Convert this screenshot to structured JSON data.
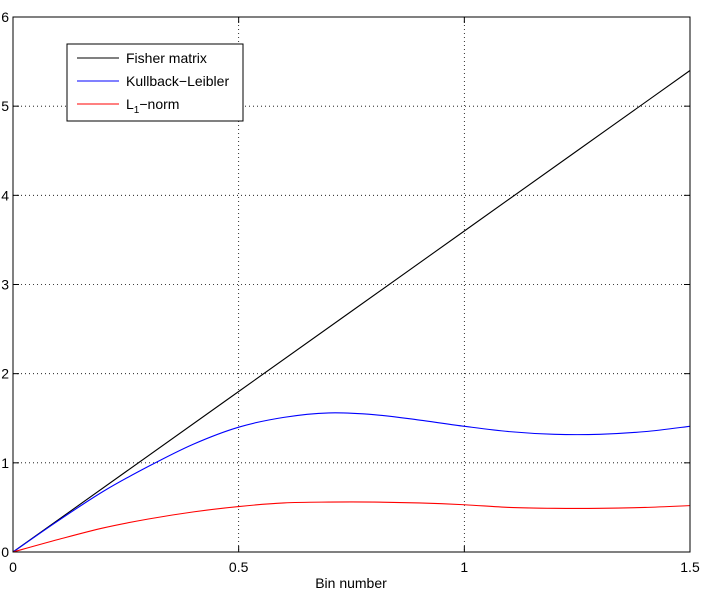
{
  "chart_data": {
    "type": "line",
    "xlabel": "Bin number",
    "ylabel": "",
    "xlim": [
      0,
      1.5
    ],
    "ylim": [
      0,
      6
    ],
    "xticks": [
      0,
      0.5,
      1,
      1.5
    ],
    "xtick_labels": [
      "0",
      "0.5",
      "1",
      "1.5"
    ],
    "yticks": [
      0,
      1,
      2,
      3,
      4,
      5,
      6
    ],
    "ytick_labels": [
      "0",
      "1",
      "2",
      "3",
      "4",
      "5",
      "6"
    ],
    "grid": true,
    "legend_position": "top-left",
    "series": [
      {
        "name": "Fisher matrix",
        "color": "#000000",
        "x": [
          0,
          0.25,
          0.5,
          0.75,
          1.0,
          1.25,
          1.5
        ],
        "y": [
          0,
          0.9,
          1.8,
          2.7,
          3.6,
          4.5,
          5.4
        ]
      },
      {
        "name": "Kullback−Leibler",
        "color": "#0000ff",
        "x": [
          0,
          0.1,
          0.2,
          0.3,
          0.4,
          0.5,
          0.6,
          0.7,
          0.8,
          0.9,
          1.0,
          1.1,
          1.2,
          1.3,
          1.4,
          1.5
        ],
        "y": [
          0,
          0.35,
          0.68,
          0.96,
          1.21,
          1.4,
          1.51,
          1.56,
          1.54,
          1.48,
          1.41,
          1.35,
          1.32,
          1.32,
          1.35,
          1.41
        ]
      },
      {
        "name_main": "L",
        "name_sub": "1",
        "name_rest": "−norm",
        "color": "#ff0000",
        "x": [
          0,
          0.1,
          0.2,
          0.3,
          0.4,
          0.5,
          0.6,
          0.7,
          0.8,
          0.9,
          1.0,
          1.1,
          1.2,
          1.3,
          1.4,
          1.5
        ],
        "y": [
          0,
          0.14,
          0.27,
          0.37,
          0.45,
          0.51,
          0.55,
          0.56,
          0.56,
          0.55,
          0.53,
          0.5,
          0.49,
          0.49,
          0.5,
          0.52
        ]
      }
    ]
  }
}
